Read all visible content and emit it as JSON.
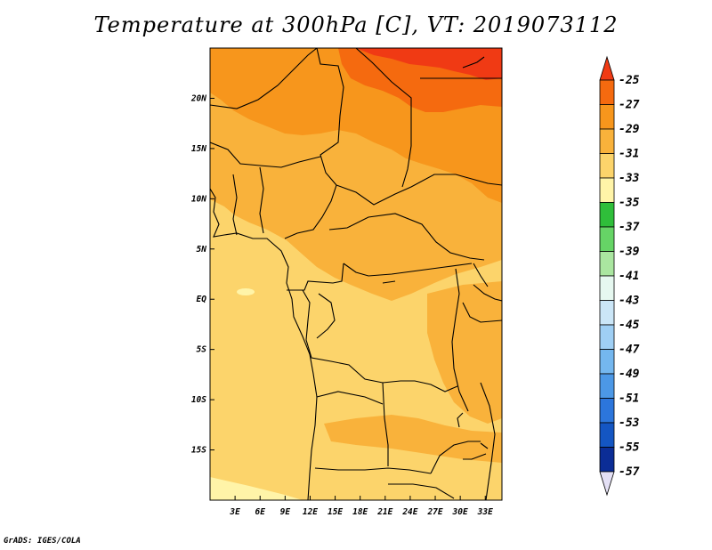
{
  "title": "Temperature at 300hPa [C], VT: 2019073112",
  "credit": "GrADS: IGES/COLA",
  "chart_data": {
    "type": "heatmap",
    "variable": "Temperature at 300hPa",
    "units": "C",
    "valid_time": "2019073112",
    "lon_range": [
      0,
      35
    ],
    "lat_range": [
      -20,
      25
    ],
    "x_ticks": [
      "3E",
      "6E",
      "9E",
      "12E",
      "15E",
      "18E",
      "21E",
      "24E",
      "27E",
      "30E",
      "33E"
    ],
    "x_tick_values": [
      3,
      6,
      9,
      12,
      15,
      18,
      21,
      24,
      27,
      30,
      33
    ],
    "y_ticks": [
      "20N",
      "15N",
      "10N",
      "5N",
      "EQ",
      "5S",
      "10S",
      "15S"
    ],
    "y_tick_values": [
      20,
      15,
      10,
      5,
      0,
      -5,
      -10,
      -15
    ],
    "colorbar": {
      "labels": [
        "-25",
        "-27",
        "-29",
        "-31",
        "-33",
        "-35",
        "-37",
        "-39",
        "-41",
        "-43",
        "-45",
        "-47",
        "-49",
        "-51",
        "-53",
        "-55",
        "-57"
      ],
      "colors": [
        "#f03a14",
        "#f56a0f",
        "#f7961c",
        "#f9b23b",
        "#fcd46b",
        "#fff4a8",
        "#2fbe3a",
        "#66d466",
        "#aae6a0",
        "#e6f8f0",
        "#cbe6f7",
        "#9fcff4",
        "#74b7ef",
        "#4c98e6",
        "#2c76dc",
        "#1456c3",
        "#0b2d96",
        "#0a1264",
        "#e4e0f5"
      ]
    }
  }
}
